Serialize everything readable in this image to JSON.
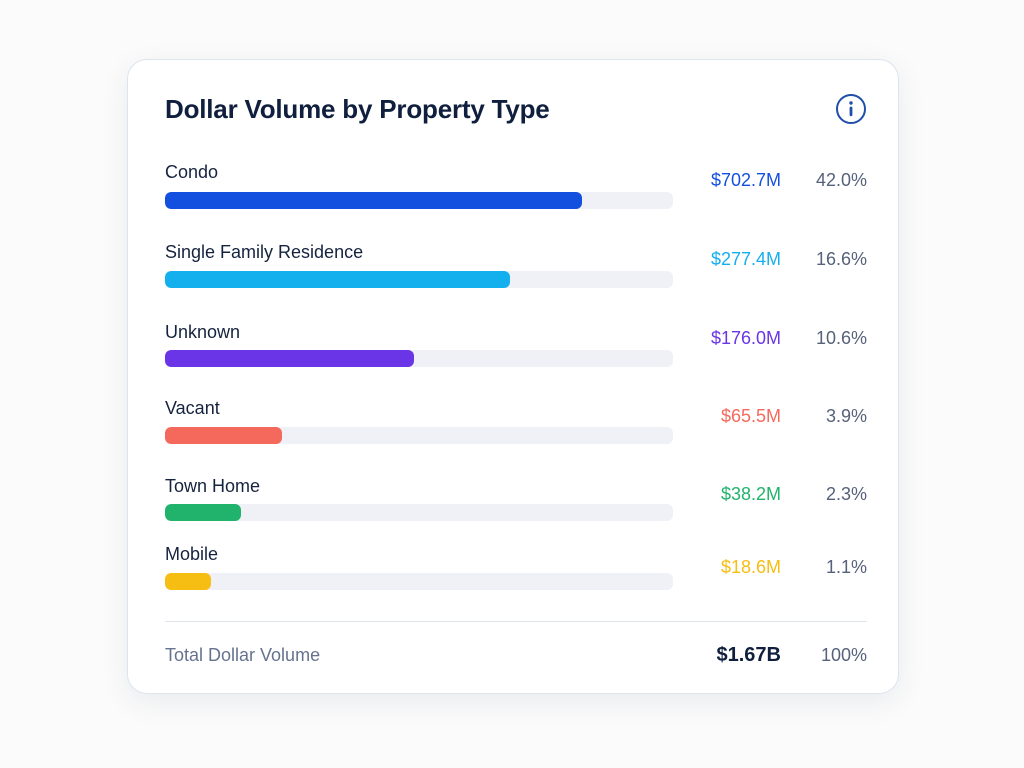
{
  "card": {
    "title": "Dollar Volume by Property Type",
    "info_icon": "info-circle-icon"
  },
  "colors": {
    "condo": "#1450e0",
    "single_family": "#14b0ee",
    "unknown": "#6a35e6",
    "vacant": "#f4695c",
    "town_home": "#21b36c",
    "mobile": "#f6bd12",
    "info_icon": "#1f4fa8"
  },
  "chart_data": {
    "type": "bar",
    "title": "Dollar Volume by Property Type",
    "categories": [
      "Condo",
      "Single Family Residence",
      "Unknown",
      "Vacant",
      "Town Home",
      "Mobile"
    ],
    "values_label": [
      "$702.7M",
      "$277.4M",
      "$176.0M",
      "$65.5M",
      "$38.2M",
      "$18.6M"
    ],
    "values_millions": [
      702.7,
      277.4,
      176.0,
      65.5,
      38.2,
      18.6
    ],
    "percents_label": [
      "42.0%",
      "16.6%",
      "10.6%",
      "3.9%",
      "2.3%",
      "1.1%"
    ],
    "percents": [
      42.0,
      16.6,
      10.6,
      3.9,
      2.3,
      1.1
    ],
    "bar_fill_fraction": [
      0.82,
      0.68,
      0.49,
      0.23,
      0.15,
      0.09
    ],
    "colors": [
      "#1450e0",
      "#14b0ee",
      "#6a35e6",
      "#f4695c",
      "#21b36c",
      "#f6bd12"
    ]
  },
  "rows": [
    {
      "label": "Condo",
      "value": "$702.7M",
      "percent": "42.0%"
    },
    {
      "label": "Single Family Residence",
      "value": "$277.4M",
      "percent": "16.6%"
    },
    {
      "label": "Unknown",
      "value": "$176.0M",
      "percent": "10.6%"
    },
    {
      "label": "Vacant",
      "value": "$65.5M",
      "percent": "3.9%"
    },
    {
      "label": "Town Home",
      "value": "$38.2M",
      "percent": "2.3%"
    },
    {
      "label": "Mobile",
      "value": "$18.6M",
      "percent": "1.1%"
    }
  ],
  "footer": {
    "label": "Total Dollar Volume",
    "value": "$1.67B",
    "percent": "100%"
  }
}
